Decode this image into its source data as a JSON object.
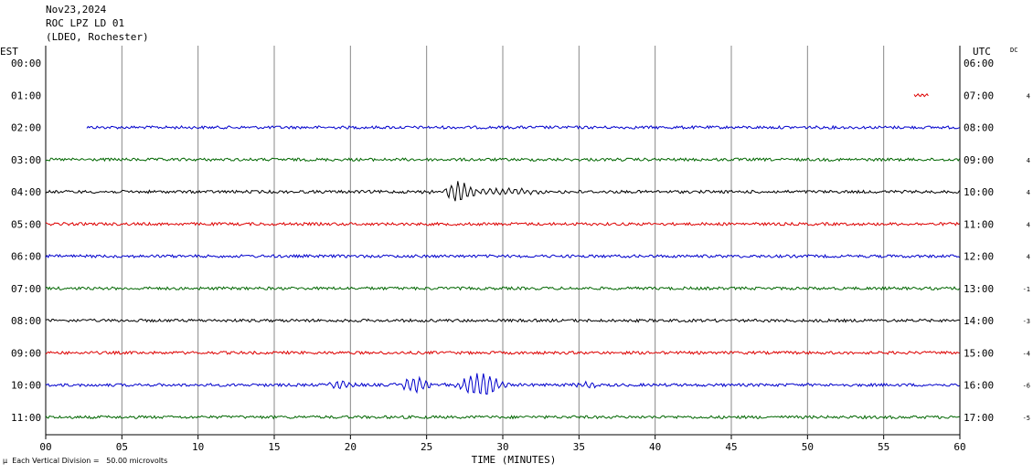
{
  "header": {
    "date": "Nov23,2024",
    "station": "ROC LPZ LD 01",
    "network": "(LDEO, Rochester)"
  },
  "axes": {
    "left_label": "EST",
    "right_label": "UTC",
    "dc_label": "DC",
    "x_title": "TIME (MINUTES)",
    "x_ticks": [
      "00",
      "05",
      "10",
      "15",
      "20",
      "25",
      "30",
      "35",
      "40",
      "45",
      "50",
      "55",
      "60"
    ]
  },
  "footnote": "Each Vertical Division =   50.00 microvolts",
  "footnote_mark": "µ",
  "colors": {
    "blue": "#0000cc",
    "green": "#006600",
    "black": "#000000",
    "red": "#dd0000",
    "grid": "#888888"
  },
  "chart_data": {
    "type": "line",
    "xlim": [
      0,
      60
    ],
    "x_unit": "minutes",
    "grid": true,
    "rows": [
      {
        "est": "00:00",
        "utc": "06:00",
        "dc": "",
        "color": "black",
        "trace": null
      },
      {
        "est": "01:00",
        "utc": "07:00",
        "dc": "4",
        "color": "red",
        "trace": [
          57,
          58
        ]
      },
      {
        "est": "02:00",
        "utc": "08:00",
        "dc": "",
        "color": "blue",
        "trace": [
          2.7,
          60
        ]
      },
      {
        "est": "03:00",
        "utc": "09:00",
        "dc": "4",
        "color": "green",
        "trace": [
          0,
          60
        ]
      },
      {
        "est": "04:00",
        "utc": "10:00",
        "dc": "4",
        "color": "black",
        "trace": [
          0,
          60
        ]
      },
      {
        "est": "05:00",
        "utc": "11:00",
        "dc": "4",
        "color": "red",
        "trace": [
          0,
          60
        ]
      },
      {
        "est": "06:00",
        "utc": "12:00",
        "dc": "4",
        "color": "blue",
        "trace": [
          0,
          60
        ]
      },
      {
        "est": "07:00",
        "utc": "13:00",
        "dc": "-1",
        "color": "green",
        "trace": [
          0,
          60
        ]
      },
      {
        "est": "08:00",
        "utc": "14:00",
        "dc": "-3",
        "color": "black",
        "trace": [
          0,
          60
        ]
      },
      {
        "est": "09:00",
        "utc": "15:00",
        "dc": "-4",
        "color": "red",
        "trace": [
          0,
          60
        ]
      },
      {
        "est": "10:00",
        "utc": "16:00",
        "dc": "-6",
        "color": "blue",
        "trace": [
          0,
          60
        ]
      },
      {
        "est": "11:00",
        "utc": "17:00",
        "dc": "-5",
        "color": "green",
        "trace": [
          0,
          60
        ]
      }
    ],
    "events": [
      {
        "row": "04:00",
        "minute": 27.1,
        "amplitude": 10,
        "span_minutes": 1.2
      },
      {
        "row": "04:00",
        "minute": 29.3,
        "amplitude": 3,
        "span_minutes": 6.5
      },
      {
        "row": "10:00",
        "minute": 24.2,
        "amplitude": 8,
        "span_minutes": 1.5
      },
      {
        "row": "10:00",
        "minute": 28.5,
        "amplitude": 12,
        "span_minutes": 2.2
      },
      {
        "row": "10:00",
        "minute": 19.5,
        "amplitude": 4,
        "span_minutes": 1.5
      },
      {
        "row": "10:00",
        "minute": 35.5,
        "amplitude": 3,
        "span_minutes": 1.2
      }
    ]
  }
}
